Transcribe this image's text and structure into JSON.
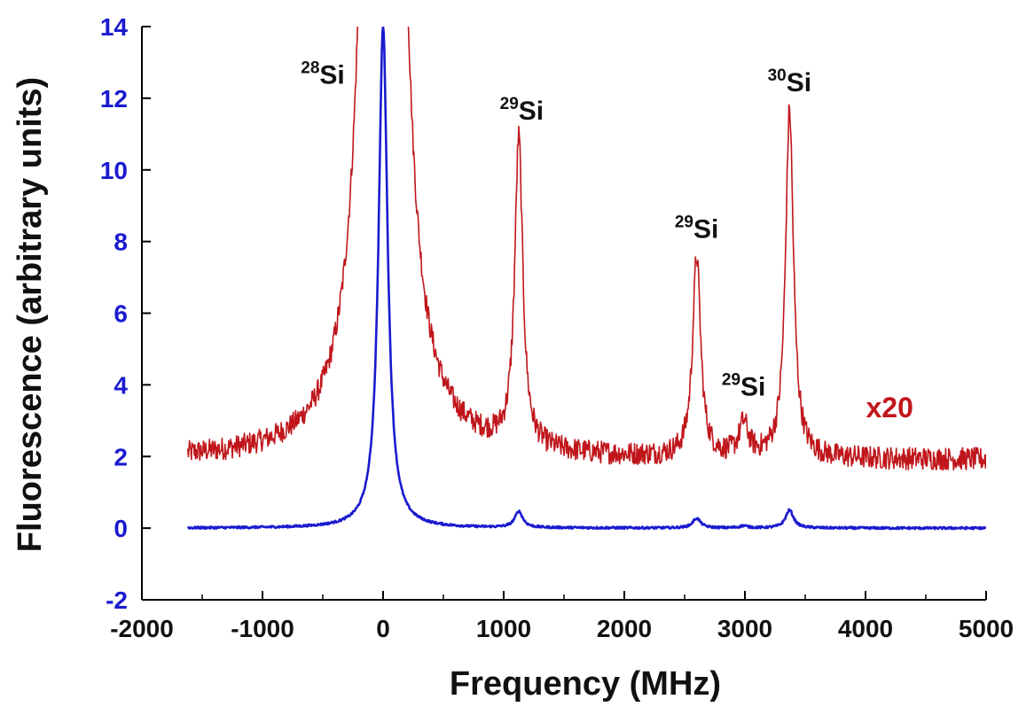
{
  "chart_data": {
    "type": "line",
    "title": "",
    "xlabel": "Frequency (MHz)",
    "ylabel": "Fluorescence (arbitrary units)",
    "xlim": [
      -2000,
      5000
    ],
    "ylim": [
      -2,
      14
    ],
    "x_ticks": [
      "-2000",
      "-1000",
      "0",
      "1000",
      "2000",
      "3000",
      "4000",
      "5000"
    ],
    "y_ticks": [
      "-2",
      "0",
      "2",
      "4",
      "6",
      "8",
      "10",
      "12",
      "14"
    ],
    "grid": false,
    "legend": "none",
    "series": [
      {
        "color": "#1a1ad0",
        "x_range": [
          -1620,
          5000
        ],
        "baseline": 0,
        "peaks": [
          {
            "x": 0,
            "height": 14.0,
            "width": 45
          },
          {
            "x": 1125,
            "height": 0.45,
            "width": 40
          },
          {
            "x": 2600,
            "height": 0.27,
            "width": 40
          },
          {
            "x": 2990,
            "height": 0.06,
            "width": 40
          },
          {
            "x": 3370,
            "height": 0.5,
            "width": 40
          }
        ]
      },
      {
        "color": "#c0161b",
        "x_range": [
          -1620,
          5000
        ],
        "baseline": 1.9,
        "peaks": [
          {
            "x": 0,
            "height": 280,
            "width": 45
          },
          {
            "x": 1125,
            "height": 8.6,
            "width": 40
          },
          {
            "x": 2600,
            "height": 5.6,
            "width": 40
          },
          {
            "x": 2990,
            "height": 0.9,
            "width": 45
          },
          {
            "x": 3370,
            "height": 9.7,
            "width": 40
          }
        ]
      }
    ],
    "annotations": [
      {
        "sup": "28",
        "text": "Si",
        "x": -500,
        "y": 12.4
      },
      {
        "sup": "29",
        "text": "Si",
        "x": 1150,
        "y": 11.4
      },
      {
        "sup": "29",
        "text": "Si",
        "x": 2600,
        "y": 8.1
      },
      {
        "sup": "29",
        "text": "Si",
        "x": 2990,
        "y": 3.7
      },
      {
        "sup": "30",
        "text": "Si",
        "x": 3370,
        "y": 12.2
      },
      {
        "text": "x20",
        "x": 4200,
        "y": 3.1,
        "color": "#c0161b"
      }
    ]
  }
}
